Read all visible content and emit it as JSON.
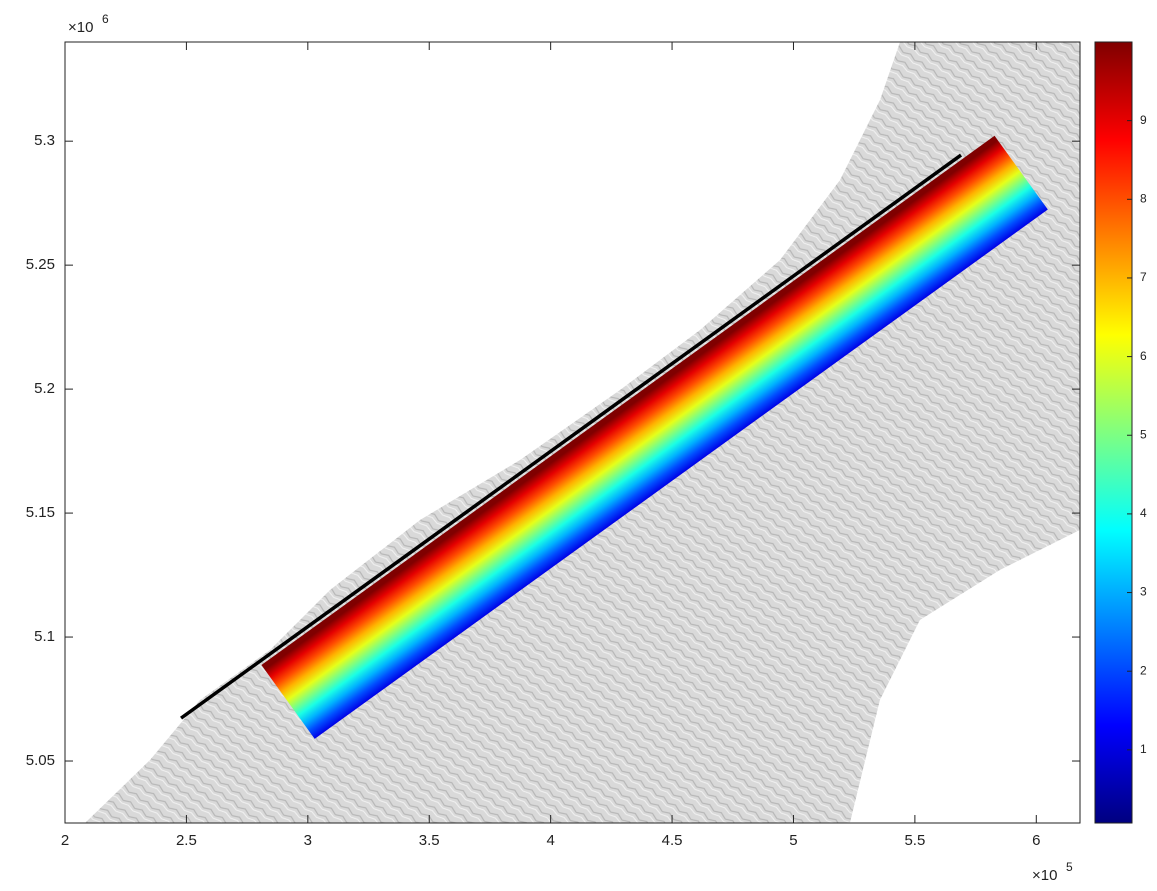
{
  "chart_data": {
    "type": "map",
    "xlim": [
      2,
      6.18
    ],
    "ylim": [
      5.025,
      5.34
    ],
    "xticks": [
      2,
      2.5,
      3,
      3.5,
      4,
      4.5,
      5,
      5.5,
      6
    ],
    "yticks": [
      5.05,
      5.1,
      5.15,
      5.2,
      5.25,
      5.3
    ],
    "x_multiplier": "×10",
    "x_exponent": "5",
    "y_multiplier": "×10",
    "y_exponent": "6",
    "fault_line": {
      "x": [
        2.478,
        5.69
      ],
      "y": [
        5.0673,
        5.2944
      ],
      "color": "#000000"
    },
    "colorbar": {
      "colormap": "jet",
      "clim": [
        0.07,
        10
      ],
      "ticks": [
        1,
        2,
        3,
        4,
        5,
        6,
        7,
        8,
        9
      ]
    }
  }
}
